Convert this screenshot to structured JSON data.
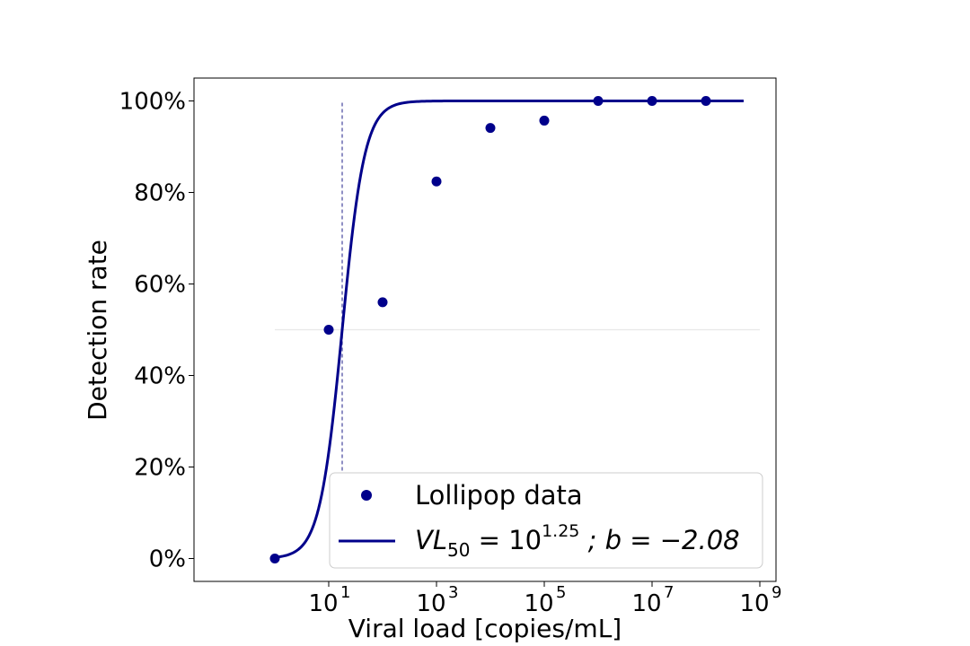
{
  "chart_data": {
    "type": "scatter",
    "xscale": "log",
    "xlabel": "Viral load [copies/mL]",
    "ylabel": "Detection rate",
    "xlim_log10": [
      -1.5,
      9.3
    ],
    "ylim": [
      -0.05,
      1.05
    ],
    "yticks": [
      {
        "value": 0.0,
        "label": "0%"
      },
      {
        "value": 0.2,
        "label": "20%"
      },
      {
        "value": 0.4,
        "label": "40%"
      },
      {
        "value": 0.6,
        "label": "60%"
      },
      {
        "value": 0.8,
        "label": "80%"
      },
      {
        "value": 1.0,
        "label": "100%"
      }
    ],
    "xticks": [
      {
        "log10": 1,
        "base": "10",
        "exp": "1"
      },
      {
        "log10": 3,
        "base": "10",
        "exp": "3"
      },
      {
        "log10": 5,
        "base": "10",
        "exp": "5"
      },
      {
        "log10": 7,
        "base": "10",
        "exp": "7"
      },
      {
        "log10": 9,
        "base": "10",
        "exp": "9"
      }
    ],
    "series": [
      {
        "name": "Lollipop data",
        "kind": "scatter",
        "color": "#00008b",
        "points": [
          {
            "x": 1,
            "y": 0.0
          },
          {
            "x": 10,
            "y": 0.5
          },
          {
            "x": 100,
            "y": 0.56
          },
          {
            "x": 1000,
            "y": 0.824
          },
          {
            "x": 10000,
            "y": 0.941
          },
          {
            "x": 100000,
            "y": 0.957
          },
          {
            "x": 1000000,
            "y": 1.0
          },
          {
            "x": 10000000,
            "y": 1.0
          },
          {
            "x": 100000000,
            "y": 1.0
          }
        ]
      },
      {
        "kind": "fit",
        "color": "#00008b",
        "vl50_log10": 1.25,
        "b": -2.08,
        "x_range": [
          1,
          500000000
        ]
      }
    ],
    "reference_lines": {
      "hline": {
        "y": 0.5,
        "color": "#e8e8e8"
      },
      "vline": {
        "x_log10": 1.25,
        "y_range": [
          0,
          1.0
        ],
        "color": "#6a6ab0",
        "style": "dashed"
      }
    },
    "legend": {
      "position": "lower right",
      "entries": [
        {
          "label": "Lollipop data"
        },
        {
          "label_main": "VL",
          "label_sub": "50",
          "label_eq": " = 10",
          "label_sup": "1.25",
          "label_rest": " ; b = −2.08"
        }
      ]
    }
  }
}
